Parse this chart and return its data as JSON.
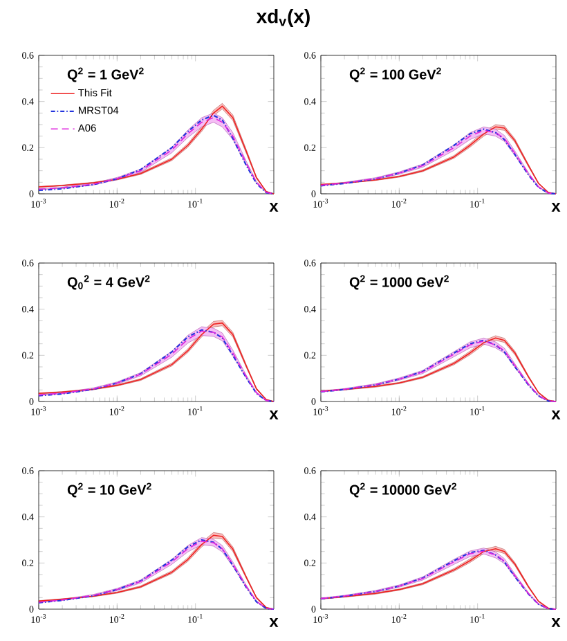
{
  "chart_data": [
    {
      "type": "line",
      "title": "xd$_{v}$(x)",
      "xlabel": "x",
      "annotations": [
        "Q$^{2}$ = 1 GeV$^{2}$"
      ],
      "log": "x",
      "legend": "top left",
      "xlim": [
        0.001,
        1
      ],
      "ylim": [
        0,
        0.6
      ],
      "xticks": [
        {
          "value": 0.001,
          "label": "10$^{-3}$"
        },
        {
          "value": 0.01,
          "label": "10$^{-2}$"
        },
        {
          "value": 0.1,
          "label": "10$^{-1}$"
        }
      ],
      "yticks": [
        0,
        0.2,
        0.4,
        0.6
      ],
      "x": [
        0.001,
        0.002,
        0.005,
        0.01,
        0.02,
        0.05,
        0.08,
        0.12,
        0.17,
        0.22,
        0.3,
        0.45,
        0.6,
        0.8,
        1.0
      ],
      "series": [
        {
          "name": "This Fit",
          "color": "#ee2222",
          "line_style": "solid",
          "values": [
            0.03,
            0.036,
            0.048,
            0.063,
            0.088,
            0.15,
            0.21,
            0.28,
            0.35,
            0.38,
            0.33,
            0.18,
            0.07,
            0.01,
            0
          ],
          "upper": [
            0.032,
            0.038,
            0.05,
            0.066,
            0.092,
            0.156,
            0.218,
            0.29,
            0.362,
            0.392,
            0.342,
            0.188,
            0.074,
            0.011,
            0
          ],
          "lower": [
            0.028,
            0.034,
            0.046,
            0.06,
            0.084,
            0.144,
            0.202,
            0.27,
            0.338,
            0.368,
            0.318,
            0.172,
            0.066,
            0.009,
            0
          ]
        },
        {
          "name": "MRST04",
          "color": "#2233dd",
          "line_style": "dotted",
          "values": [
            0.015,
            0.022,
            0.04,
            0.065,
            0.105,
            0.2,
            0.27,
            0.32,
            0.34,
            0.32,
            0.24,
            0.12,
            0.045,
            0.005,
            0
          ]
        },
        {
          "name": "A06",
          "color": "#dd22dd",
          "line_style": "dashed",
          "values": [
            0.02,
            0.026,
            0.042,
            0.066,
            0.1,
            0.19,
            0.26,
            0.31,
            0.33,
            0.31,
            0.25,
            0.13,
            0.05,
            0.006,
            0
          ],
          "upper": [
            0.022,
            0.029,
            0.046,
            0.071,
            0.107,
            0.202,
            0.276,
            0.33,
            0.35,
            0.33,
            0.265,
            0.138,
            0.054,
            0.007,
            0
          ],
          "lower": [
            0.018,
            0.023,
            0.038,
            0.061,
            0.093,
            0.178,
            0.244,
            0.29,
            0.31,
            0.29,
            0.235,
            0.122,
            0.046,
            0.005,
            0
          ]
        }
      ]
    },
    {
      "type": "line",
      "xlabel": "x",
      "annotations": [
        "Q$^{2}$ = 100 GeV$^{2}$"
      ],
      "log": "x",
      "xlim": [
        0.001,
        1
      ],
      "ylim": [
        0,
        0.6
      ],
      "xticks": [
        {
          "value": 0.001,
          "label": "10$^{-3}$"
        },
        {
          "value": 0.01,
          "label": "10$^{-2}$"
        },
        {
          "value": 0.1,
          "label": "10$^{-1}$"
        }
      ],
      "yticks": [
        0,
        0.2,
        0.4,
        0.6
      ],
      "x": [
        0.001,
        0.002,
        0.005,
        0.01,
        0.02,
        0.05,
        0.08,
        0.12,
        0.17,
        0.22,
        0.3,
        0.45,
        0.6,
        0.8,
        1.0
      ],
      "series": [
        {
          "color": "#ee2222",
          "line_style": "solid",
          "values": [
            0.04,
            0.047,
            0.06,
            0.075,
            0.1,
            0.16,
            0.21,
            0.26,
            0.29,
            0.285,
            0.23,
            0.12,
            0.045,
            0.006,
            0
          ],
          "upper": [
            0.042,
            0.049,
            0.062,
            0.078,
            0.104,
            0.166,
            0.218,
            0.27,
            0.3,
            0.295,
            0.238,
            0.125,
            0.047,
            0.007,
            0
          ],
          "lower": [
            0.038,
            0.045,
            0.058,
            0.072,
            0.096,
            0.154,
            0.202,
            0.25,
            0.28,
            0.275,
            0.222,
            0.115,
            0.043,
            0.005,
            0
          ]
        },
        {
          "color": "#2233dd",
          "line_style": "dotted",
          "values": [
            0.035,
            0.045,
            0.065,
            0.09,
            0.125,
            0.21,
            0.26,
            0.28,
            0.265,
            0.235,
            0.17,
            0.08,
            0.028,
            0.003,
            0
          ]
        },
        {
          "color": "#dd22dd",
          "line_style": "dashed",
          "values": [
            0.037,
            0.047,
            0.066,
            0.09,
            0.122,
            0.2,
            0.25,
            0.275,
            0.265,
            0.24,
            0.175,
            0.085,
            0.03,
            0.003,
            0
          ],
          "upper": [
            0.039,
            0.05,
            0.07,
            0.095,
            0.129,
            0.212,
            0.265,
            0.29,
            0.28,
            0.253,
            0.185,
            0.09,
            0.032,
            0.004,
            0
          ],
          "lower": [
            0.035,
            0.044,
            0.062,
            0.085,
            0.115,
            0.188,
            0.235,
            0.26,
            0.25,
            0.227,
            0.165,
            0.08,
            0.028,
            0.002,
            0
          ]
        }
      ]
    },
    {
      "type": "line",
      "xlabel": "x",
      "annotations": [
        "Q$_{0}$$^{2}$ = 4 GeV$^{2}$"
      ],
      "log": "x",
      "xlim": [
        0.001,
        1
      ],
      "ylim": [
        0,
        0.6
      ],
      "xticks": [
        {
          "value": 0.001,
          "label": "10$^{-3}$"
        },
        {
          "value": 0.01,
          "label": "10$^{-2}$"
        },
        {
          "value": 0.1,
          "label": "10$^{-1}$"
        }
      ],
      "yticks": [
        0,
        0.2,
        0.4,
        0.6
      ],
      "x": [
        0.001,
        0.002,
        0.005,
        0.01,
        0.02,
        0.05,
        0.08,
        0.12,
        0.17,
        0.22,
        0.3,
        0.45,
        0.6,
        0.8,
        1.0
      ],
      "series": [
        {
          "color": "#ee2222",
          "line_style": "solid",
          "values": [
            0.035,
            0.041,
            0.053,
            0.07,
            0.095,
            0.16,
            0.22,
            0.29,
            0.335,
            0.34,
            0.29,
            0.15,
            0.055,
            0.008,
            0
          ],
          "upper": [
            0.037,
            0.043,
            0.055,
            0.073,
            0.099,
            0.166,
            0.228,
            0.3,
            0.347,
            0.352,
            0.3,
            0.156,
            0.058,
            0.009,
            0
          ],
          "lower": [
            0.033,
            0.039,
            0.051,
            0.067,
            0.091,
            0.154,
            0.212,
            0.28,
            0.323,
            0.328,
            0.28,
            0.144,
            0.052,
            0.007,
            0
          ]
        },
        {
          "color": "#2233dd",
          "line_style": "dotted",
          "values": [
            0.025,
            0.033,
            0.053,
            0.08,
            0.12,
            0.215,
            0.28,
            0.31,
            0.3,
            0.275,
            0.2,
            0.1,
            0.035,
            0.004,
            0
          ]
        },
        {
          "color": "#dd22dd",
          "line_style": "dashed",
          "values": [
            0.028,
            0.036,
            0.055,
            0.08,
            0.118,
            0.205,
            0.27,
            0.305,
            0.3,
            0.28,
            0.21,
            0.105,
            0.038,
            0.004,
            0
          ],
          "upper": [
            0.03,
            0.039,
            0.059,
            0.085,
            0.125,
            0.218,
            0.287,
            0.324,
            0.318,
            0.297,
            0.223,
            0.111,
            0.041,
            0.005,
            0
          ],
          "lower": [
            0.026,
            0.033,
            0.051,
            0.075,
            0.111,
            0.192,
            0.253,
            0.286,
            0.282,
            0.263,
            0.197,
            0.099,
            0.035,
            0.003,
            0
          ]
        }
      ]
    },
    {
      "type": "line",
      "xlabel": "x",
      "annotations": [
        "Q$^{2}$ = 1000 GeV$^{2}$"
      ],
      "log": "x",
      "xlim": [
        0.001,
        1
      ],
      "ylim": [
        0,
        0.6
      ],
      "xticks": [
        {
          "value": 0.001,
          "label": "10$^{-3}$"
        },
        {
          "value": 0.01,
          "label": "10$^{-2}$"
        },
        {
          "value": 0.1,
          "label": "10$^{-1}$"
        }
      ],
      "yticks": [
        0,
        0.2,
        0.4,
        0.6
      ],
      "x": [
        0.001,
        0.002,
        0.005,
        0.01,
        0.02,
        0.05,
        0.08,
        0.12,
        0.17,
        0.22,
        0.3,
        0.45,
        0.6,
        0.8,
        1.0
      ],
      "series": [
        {
          "color": "#ee2222",
          "line_style": "solid",
          "values": [
            0.045,
            0.052,
            0.065,
            0.08,
            0.105,
            0.165,
            0.21,
            0.255,
            0.275,
            0.265,
            0.21,
            0.105,
            0.038,
            0.005,
            0
          ],
          "upper": [
            0.047,
            0.054,
            0.068,
            0.083,
            0.109,
            0.171,
            0.218,
            0.264,
            0.285,
            0.274,
            0.218,
            0.109,
            0.04,
            0.006,
            0
          ],
          "lower": [
            0.043,
            0.05,
            0.062,
            0.077,
            0.101,
            0.159,
            0.202,
            0.246,
            0.265,
            0.256,
            0.202,
            0.101,
            0.036,
            0.004,
            0
          ]
        },
        {
          "color": "#2233dd",
          "line_style": "dotted",
          "values": [
            0.042,
            0.052,
            0.072,
            0.097,
            0.13,
            0.21,
            0.25,
            0.265,
            0.245,
            0.215,
            0.15,
            0.07,
            0.024,
            0.002,
            0
          ]
        },
        {
          "color": "#dd22dd",
          "line_style": "dashed",
          "values": [
            0.043,
            0.053,
            0.073,
            0.097,
            0.128,
            0.205,
            0.245,
            0.262,
            0.245,
            0.22,
            0.155,
            0.073,
            0.025,
            0.002,
            0
          ],
          "upper": [
            0.045,
            0.056,
            0.077,
            0.102,
            0.135,
            0.216,
            0.258,
            0.275,
            0.258,
            0.231,
            0.163,
            0.077,
            0.027,
            0.003,
            0
          ],
          "lower": [
            0.041,
            0.05,
            0.069,
            0.092,
            0.121,
            0.194,
            0.232,
            0.249,
            0.232,
            0.209,
            0.147,
            0.069,
            0.023,
            0.001,
            0
          ]
        }
      ]
    },
    {
      "type": "line",
      "xlabel": "x",
      "annotations": [
        "Q$^{2}$ = 10 GeV$^{2}$"
      ],
      "log": "x",
      "xlim": [
        0.001,
        1
      ],
      "ylim": [
        0,
        0.6
      ],
      "xticks": [
        {
          "value": 0.001,
          "label": "10$^{-3}$"
        },
        {
          "value": 0.01,
          "label": "10$^{-2}$"
        },
        {
          "value": 0.1,
          "label": "10$^{-1}$"
        }
      ],
      "yticks": [
        0,
        0.2,
        0.4,
        0.6
      ],
      "x": [
        0.001,
        0.002,
        0.005,
        0.01,
        0.02,
        0.05,
        0.08,
        0.12,
        0.17,
        0.22,
        0.3,
        0.45,
        0.6,
        0.8,
        1.0
      ],
      "series": [
        {
          "color": "#ee2222",
          "line_style": "solid",
          "values": [
            0.035,
            0.043,
            0.056,
            0.072,
            0.097,
            0.16,
            0.215,
            0.28,
            0.32,
            0.315,
            0.26,
            0.135,
            0.05,
            0.007,
            0
          ],
          "upper": [
            0.037,
            0.045,
            0.058,
            0.075,
            0.101,
            0.166,
            0.223,
            0.29,
            0.332,
            0.326,
            0.27,
            0.14,
            0.053,
            0.008,
            0
          ],
          "lower": [
            0.033,
            0.041,
            0.054,
            0.069,
            0.093,
            0.154,
            0.207,
            0.27,
            0.308,
            0.304,
            0.25,
            0.13,
            0.047,
            0.006,
            0
          ]
        },
        {
          "color": "#2233dd",
          "line_style": "dotted",
          "values": [
            0.028,
            0.038,
            0.058,
            0.085,
            0.122,
            0.213,
            0.27,
            0.3,
            0.29,
            0.26,
            0.19,
            0.092,
            0.032,
            0.003,
            0
          ]
        },
        {
          "color": "#dd22dd",
          "line_style": "dashed",
          "values": [
            0.03,
            0.04,
            0.06,
            0.085,
            0.12,
            0.205,
            0.262,
            0.295,
            0.288,
            0.262,
            0.195,
            0.096,
            0.034,
            0.003,
            0
          ],
          "upper": [
            0.032,
            0.042,
            0.064,
            0.09,
            0.127,
            0.216,
            0.276,
            0.31,
            0.303,
            0.276,
            0.205,
            0.101,
            0.036,
            0.004,
            0
          ],
          "lower": [
            0.028,
            0.038,
            0.056,
            0.08,
            0.113,
            0.194,
            0.248,
            0.28,
            0.273,
            0.248,
            0.185,
            0.091,
            0.032,
            0.002,
            0
          ]
        }
      ]
    },
    {
      "type": "line",
      "xlabel": "x",
      "annotations": [
        "Q$^{2}$ = 10000 GeV$^{2}$"
      ],
      "log": "x",
      "xlim": [
        0.001,
        1
      ],
      "ylim": [
        0,
        0.6
      ],
      "xticks": [
        {
          "value": 0.001,
          "label": "10$^{-3}$"
        },
        {
          "value": 0.01,
          "label": "10$^{-2}$"
        },
        {
          "value": 0.1,
          "label": "10$^{-1}$"
        }
      ],
      "yticks": [
        0,
        0.2,
        0.4,
        0.6
      ],
      "x": [
        0.001,
        0.002,
        0.005,
        0.01,
        0.02,
        0.05,
        0.08,
        0.12,
        0.17,
        0.22,
        0.3,
        0.45,
        0.6,
        0.8,
        1.0
      ],
      "series": [
        {
          "color": "#ee2222",
          "line_style": "solid",
          "values": [
            0.045,
            0.054,
            0.068,
            0.085,
            0.11,
            0.17,
            0.21,
            0.25,
            0.262,
            0.25,
            0.195,
            0.095,
            0.034,
            0.004,
            0
          ],
          "upper": [
            0.047,
            0.056,
            0.071,
            0.088,
            0.114,
            0.176,
            0.218,
            0.259,
            0.272,
            0.259,
            0.202,
            0.099,
            0.036,
            0.005,
            0
          ],
          "lower": [
            0.043,
            0.052,
            0.065,
            0.082,
            0.106,
            0.164,
            0.202,
            0.241,
            0.252,
            0.241,
            0.188,
            0.091,
            0.032,
            0.003,
            0
          ]
        },
        {
          "color": "#2233dd",
          "line_style": "dotted",
          "values": [
            0.045,
            0.056,
            0.077,
            0.1,
            0.135,
            0.21,
            0.245,
            0.255,
            0.235,
            0.205,
            0.14,
            0.064,
            0.021,
            0.002,
            0
          ]
        },
        {
          "color": "#dd22dd",
          "line_style": "dashed",
          "values": [
            0.046,
            0.057,
            0.077,
            0.1,
            0.133,
            0.205,
            0.24,
            0.252,
            0.235,
            0.208,
            0.145,
            0.066,
            0.022,
            0.002,
            0
          ],
          "upper": [
            0.048,
            0.06,
            0.081,
            0.105,
            0.14,
            0.216,
            0.252,
            0.265,
            0.248,
            0.219,
            0.152,
            0.07,
            0.024,
            0.003,
            0
          ],
          "lower": [
            0.044,
            0.054,
            0.073,
            0.095,
            0.126,
            0.194,
            0.228,
            0.239,
            0.222,
            0.197,
            0.138,
            0.062,
            0.02,
            0.001,
            0
          ]
        }
      ]
    }
  ]
}
